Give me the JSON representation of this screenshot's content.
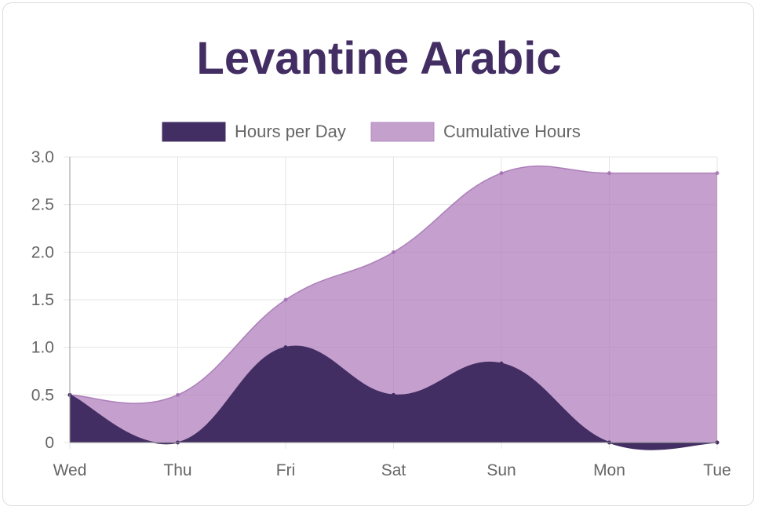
{
  "chart_data": {
    "type": "area",
    "title": "Levantine Arabic",
    "xlabel": "",
    "ylabel": "",
    "categories": [
      "Wed",
      "Thu",
      "Fri",
      "Sat",
      "Sun",
      "Mon",
      "Tue"
    ],
    "series": [
      {
        "name": "Hours per Day",
        "values": [
          0.5,
          0,
          1.0,
          0.5,
          0.83,
          0,
          0
        ],
        "color": "#432e63"
      },
      {
        "name": "Cumulative Hours",
        "values": [
          0.5,
          0.5,
          1.5,
          2.0,
          2.83,
          2.83,
          2.83
        ],
        "color": "#c4a0cc"
      }
    ],
    "ylim": [
      0,
      3.0
    ],
    "yticks": [
      "0",
      "0.5",
      "1.0",
      "1.5",
      "2.0",
      "2.5",
      "3.0"
    ],
    "grid": true,
    "legend_position": "top"
  }
}
